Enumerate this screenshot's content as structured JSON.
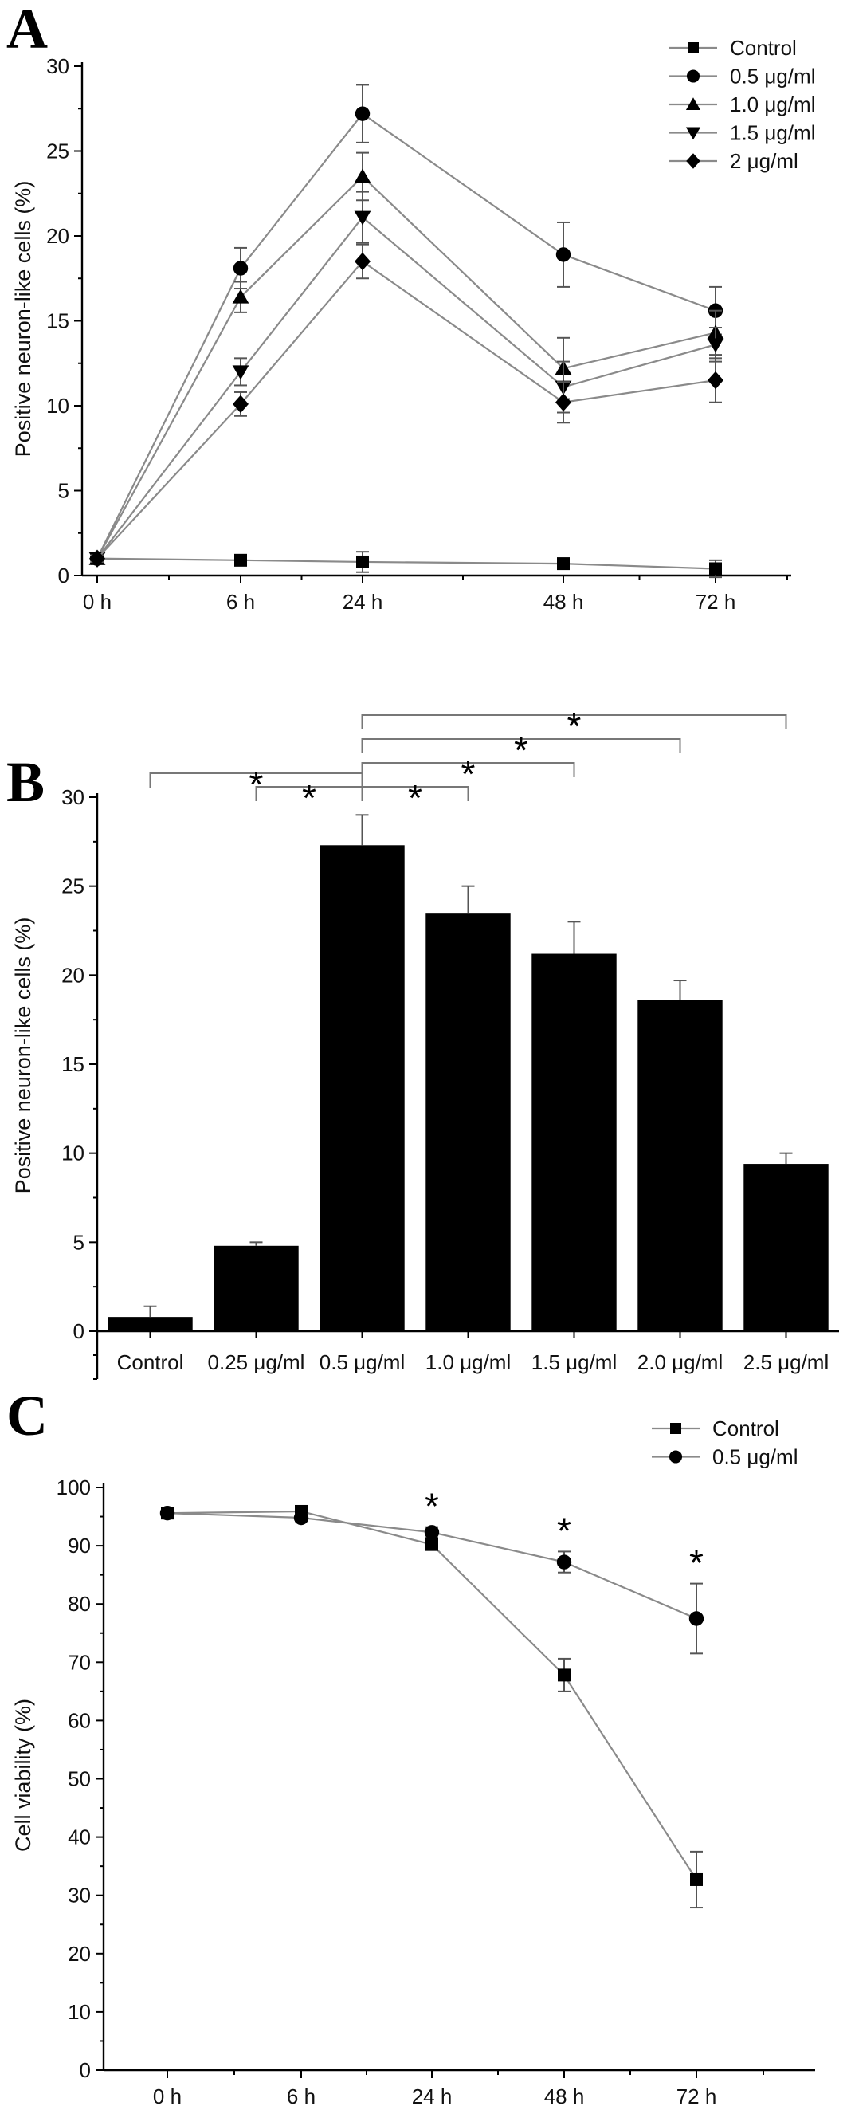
{
  "figure": {
    "panels": [
      {
        "letter": "A"
      },
      {
        "letter": "B"
      },
      {
        "letter": "C"
      }
    ]
  },
  "chart_data": [
    {
      "type": "line",
      "panel": "A",
      "title": "",
      "xlabel": "",
      "ylabel": "Positive neuron-like cells (%)",
      "ylim": [
        0,
        30
      ],
      "yticks": [
        0,
        5,
        10,
        15,
        20,
        25,
        30
      ],
      "categories": [
        "0 h",
        "6 h",
        "24 h",
        "48 h",
        "72 h"
      ],
      "legend_position": "top-right",
      "series": [
        {
          "name": "Control",
          "marker": "square",
          "values": [
            1.0,
            0.9,
            0.8,
            0.7,
            0.4
          ],
          "errors": [
            0.2,
            0.3,
            0.6,
            0.3,
            0.5
          ]
        },
        {
          "name": "0.5 μg/ml",
          "marker": "circle",
          "values": [
            1.0,
            18.1,
            27.2,
            18.9,
            15.6
          ],
          "errors": [
            0.2,
            1.2,
            1.7,
            1.9,
            1.4
          ]
        },
        {
          "name": "1.0 μg/ml",
          "marker": "triangle-up",
          "values": [
            1.0,
            16.4,
            23.5,
            12.2,
            14.3
          ],
          "errors": [
            0.2,
            0.9,
            1.4,
            1.8,
            1.3
          ]
        },
        {
          "name": "1.5 μg/ml",
          "marker": "triangle-down",
          "values": [
            1.0,
            12.0,
            21.1,
            11.1,
            13.6
          ],
          "errors": [
            0.2,
            0.8,
            1.5,
            1.5,
            1.0
          ]
        },
        {
          "name": "2 μg/ml",
          "marker": "diamond",
          "values": [
            1.0,
            10.1,
            18.5,
            10.2,
            11.5
          ],
          "errors": [
            0.2,
            0.7,
            1.0,
            1.2,
            1.3
          ]
        }
      ]
    },
    {
      "type": "bar",
      "panel": "B",
      "title": "",
      "xlabel": "",
      "ylabel": "Positive neuron-like cells (%)",
      "ylim": [
        0,
        30
      ],
      "yticks": [
        0,
        5,
        10,
        15,
        20,
        25,
        30
      ],
      "categories": [
        "Control",
        "0.25 μg/ml",
        "0.5 μg/ml",
        "1.0 μg/ml",
        "1.5 μg/ml",
        "2.0 μg/ml",
        "2.5 μg/ml"
      ],
      "values": [
        0.8,
        4.8,
        27.3,
        23.5,
        21.2,
        18.6,
        9.4
      ],
      "errors": [
        0.6,
        0.2,
        1.7,
        1.5,
        1.8,
        1.1,
        0.6
      ],
      "significance": [
        {
          "from": 2,
          "to": 0,
          "label": "*"
        },
        {
          "from": 2,
          "to": 1,
          "label": "*"
        },
        {
          "from": 2,
          "to": 3,
          "label": "*"
        },
        {
          "from": 2,
          "to": 4,
          "label": "*"
        },
        {
          "from": 2,
          "to": 5,
          "label": "*"
        },
        {
          "from": 2,
          "to": 6,
          "label": "*"
        }
      ]
    },
    {
      "type": "line",
      "panel": "C",
      "title": "",
      "xlabel": "",
      "ylabel": "Cell viability (%)",
      "ylim": [
        0,
        100
      ],
      "yticks": [
        0,
        10,
        20,
        30,
        40,
        50,
        60,
        70,
        80,
        90,
        100
      ],
      "categories": [
        "0 h",
        "6 h",
        "24 h",
        "48 h",
        "72 h"
      ],
      "legend_position": "top-right",
      "series": [
        {
          "name": "Control",
          "marker": "square",
          "values": [
            95.6,
            95.9,
            90.2,
            67.8,
            32.7
          ],
          "errors": [
            0.5,
            0.6,
            0.8,
            2.8,
            4.8
          ]
        },
        {
          "name": "0.5 μg/ml",
          "marker": "circle",
          "values": [
            95.6,
            94.8,
            92.3,
            87.2,
            77.5
          ],
          "errors": [
            0.5,
            0.6,
            0.9,
            1.8,
            6.0
          ]
        }
      ],
      "annotations": [
        {
          "category": "24 h",
          "label": "*"
        },
        {
          "category": "48 h",
          "label": "*"
        },
        {
          "category": "72 h",
          "label": "*"
        }
      ]
    }
  ]
}
